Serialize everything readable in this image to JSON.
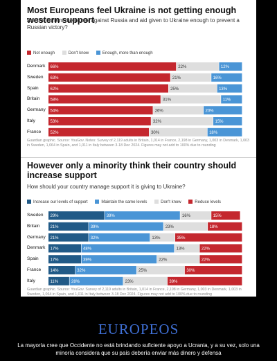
{
  "chart_data": [
    {
      "type": "bar",
      "stacked": true,
      "horizontal": true,
      "title": "Most Europeans feel Ukraine is not getting enough western support",
      "subtitle": "Are the current measures against Russia and aid given to Ukraine enough to prevent a Russian victory?",
      "categories": [
        "Denmark",
        "Sweden",
        "Spain",
        "Britain",
        "Germany",
        "Italy",
        "France"
      ],
      "series": [
        {
          "name": "Not enough",
          "color": "#c4272e",
          "values": [
            66,
            63,
            62,
            58,
            54,
            53,
            52
          ]
        },
        {
          "name": "Don't know",
          "color": "#dedede",
          "values": [
            22,
            21,
            25,
            31,
            26,
            32,
            30
          ]
        },
        {
          "name": "Enough, more than enough",
          "color": "#4a95d6",
          "values": [
            12,
            16,
            13,
            11,
            20,
            15,
            18
          ]
        }
      ],
      "note": "Guardian graphic. Source: YouGov. Notes: Survey of 2,119 adults in Britain, 1,014 in France, 2,198 in Germany, 1,003 in Denmark, 1,003 in Sweden, 1,064 in Spain, and 1,011 in Italy between 3-18 Dec 2024. Figures may not add to 100% due to rounding",
      "xlim": [
        0,
        100
      ]
    },
    {
      "type": "bar",
      "stacked": true,
      "horizontal": true,
      "title": "However only a minority think their country should increase support",
      "subtitle": "How should your country manage support it is giving to Ukraine?",
      "categories": [
        "Sweden",
        "Britain",
        "Germany",
        "Denmark",
        "Spain",
        "France",
        "Italy"
      ],
      "series": [
        {
          "name": "Increase our levels of support",
          "color": "#215a87",
          "values": [
            29,
            21,
            21,
            17,
            17,
            14,
            11
          ]
        },
        {
          "name": "Maintain the same levels",
          "color": "#4a95d6",
          "values": [
            39,
            39,
            32,
            48,
            39,
            32,
            28
          ]
        },
        {
          "name": "Don't know",
          "color": "#dedede",
          "values": [
            16,
            23,
            13,
            13,
            22,
            25,
            23
          ]
        },
        {
          "name": "Reduce levels",
          "color": "#c4272e",
          "values": [
            15,
            18,
            35,
            22,
            22,
            30,
            39
          ]
        }
      ],
      "note": "Guardian graphic. Source: YouGov. Survey of 2,119 adults in Britain, 1,014 in France, 2,198 in Germany, 1,003 in Denmark, 1,003 in Sweden, 1,064 in Spain, and 1,011 in Italy between 3-18 Dec 2024. Figures may not add to 100% due to rounding",
      "xlim": [
        0,
        100
      ]
    }
  ],
  "poster": {
    "title": "EUROPEOS",
    "caption": "La mayoría cree que Occidente no está brindando suficiente apoyo a Ucrania, y a su vez, solo una minoría considera que su país debería enviar más dinero y defensa"
  }
}
